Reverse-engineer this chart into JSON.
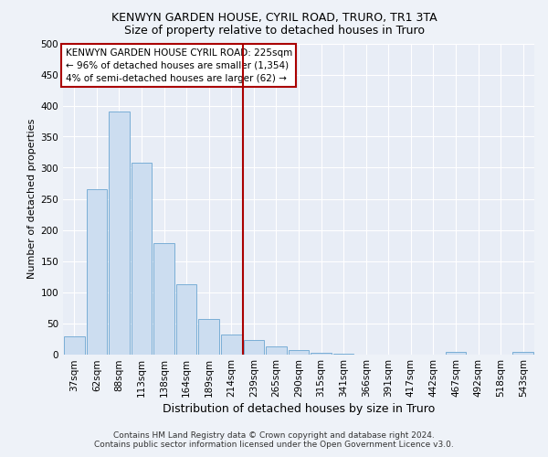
{
  "title": "KENWYN GARDEN HOUSE, CYRIL ROAD, TRURO, TR1 3TA",
  "subtitle": "Size of property relative to detached houses in Truro",
  "xlabel": "Distribution of detached houses by size in Truro",
  "ylabel": "Number of detached properties",
  "categories": [
    "37sqm",
    "62sqm",
    "88sqm",
    "113sqm",
    "138sqm",
    "164sqm",
    "189sqm",
    "214sqm",
    "239sqm",
    "265sqm",
    "290sqm",
    "315sqm",
    "341sqm",
    "366sqm",
    "391sqm",
    "417sqm",
    "442sqm",
    "467sqm",
    "492sqm",
    "518sqm",
    "543sqm"
  ],
  "values": [
    28,
    265,
    390,
    308,
    178,
    113,
    57,
    32,
    23,
    12,
    6,
    2,
    1,
    0,
    0,
    0,
    0,
    4,
    0,
    0,
    3
  ],
  "bar_color": "#ccddf0",
  "bar_edgecolor": "#7aaed6",
  "vline_color": "#aa0000",
  "vline_index": 7.5,
  "annotation_line1": "KENWYN GARDEN HOUSE CYRIL ROAD: 225sqm",
  "annotation_line2": "← 96% of detached houses are smaller (1,354)",
  "annotation_line3": "4% of semi-detached houses are larger (62) →",
  "annotation_box_edgecolor": "#aa0000",
  "ylim": [
    0,
    500
  ],
  "yticks": [
    0,
    50,
    100,
    150,
    200,
    250,
    300,
    350,
    400,
    450,
    500
  ],
  "footer_line1": "Contains HM Land Registry data © Crown copyright and database right 2024.",
  "footer_line2": "Contains public sector information licensed under the Open Government Licence v3.0.",
  "fig_background_color": "#eef2f8",
  "plot_background": "#e8edf6",
  "title_fontsize": 9,
  "subtitle_fontsize": 9,
  "ylabel_fontsize": 8,
  "xlabel_fontsize": 9,
  "tick_fontsize": 7.5,
  "annotation_fontsize": 7.5,
  "footer_fontsize": 6.5
}
